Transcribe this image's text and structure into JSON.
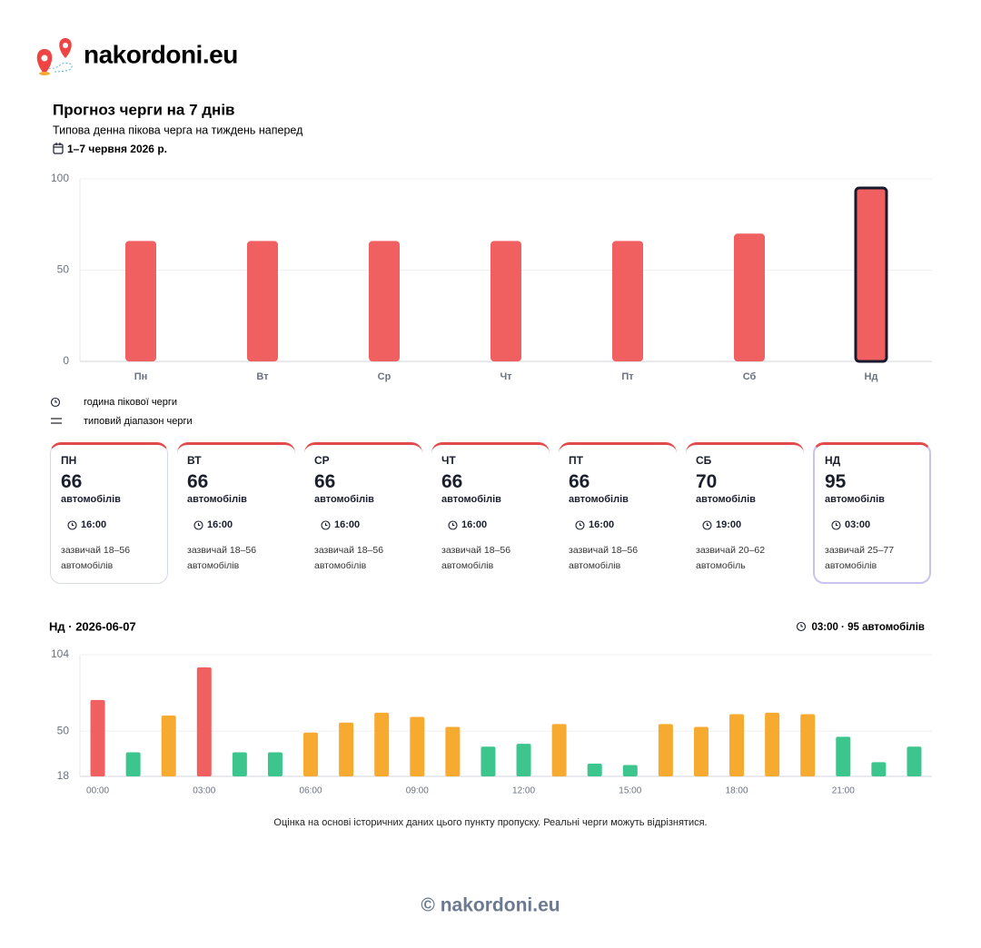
{
  "header": {
    "brand": "nakordoni.eu"
  },
  "section": {
    "title": "Прогноз черги на 7 днів",
    "subtitle": "Типова денна пікова черга на тиждень наперед",
    "dates": "1–7 червня 2026 р."
  },
  "chart_data": [
    {
      "type": "bar",
      "categories": [
        "Пн",
        "Вт",
        "Ср",
        "Чт",
        "Пт",
        "Сб",
        "Нд"
      ],
      "values": [
        66,
        66,
        66,
        66,
        66,
        70,
        95
      ],
      "color": "#f06060",
      "ylim": [
        0,
        100
      ],
      "yticks": [
        0,
        50,
        100
      ],
      "grid": true
    },
    {
      "type": "bar",
      "title": "Нд · 2026-06-07",
      "peak": "03:00 · 95 автомобілів",
      "categories": [
        "00:00",
        null,
        null,
        "03:00",
        null,
        null,
        "06:00",
        null,
        null,
        "09:00",
        null,
        null,
        "12:00",
        null,
        null,
        "15:00",
        null,
        null,
        "18:00",
        null,
        null,
        "21:00",
        null,
        null
      ],
      "values": [
        72,
        35,
        61,
        95,
        35,
        35,
        49,
        56,
        63,
        60,
        53,
        39,
        41,
        55,
        27,
        26,
        55,
        53,
        62,
        63,
        62,
        46,
        28,
        39
      ],
      "colors": [
        "#f06060",
        "#3cc68e",
        "#f6ab30",
        "#f06060",
        "#3cc68e",
        "#3cc68e",
        "#f6ab30",
        "#f6ab30",
        "#f6ab30",
        "#f6ab30",
        "#f6ab30",
        "#3cc68e",
        "#3cc68e",
        "#f6ab30",
        "#3cc68e",
        "#3cc68e",
        "#f6ab30",
        "#f6ab30",
        "#f6ab30",
        "#f6ab30",
        "#f6ab30",
        "#3cc68e",
        "#3cc68e",
        "#3cc68e"
      ],
      "ylim": [
        18,
        104
      ],
      "yticks": [
        18,
        50,
        104
      ],
      "grid": true
    }
  ],
  "legend": {
    "peak": "година пікової черги",
    "range": "типовий діапазон черги"
  },
  "cards": [
    {
      "day": "ПН",
      "value": 66,
      "unit": "автомобілів",
      "time": "16:00",
      "range": "зазвичай 18–56 автомобілів"
    },
    {
      "day": "ВТ",
      "value": 66,
      "unit": "автомобілів",
      "time": "16:00",
      "range": "зазвичай 18–56 автомобілів"
    },
    {
      "day": "СР",
      "value": 66,
      "unit": "автомобілів",
      "time": "16:00",
      "range": "зазвичай 18–56 автомобілів"
    },
    {
      "day": "ЧТ",
      "value": 66,
      "unit": "автомобілів",
      "time": "16:00",
      "range": "зазвичай 18–56 автомобілів"
    },
    {
      "day": "ПТ",
      "value": 66,
      "unit": "автомобілів",
      "time": "16:00",
      "range": "зазвичай 18–56 автомобілів"
    },
    {
      "day": "СБ",
      "value": 70,
      "unit": "автомобілів",
      "time": "19:00",
      "range": "зазвичай 20–62 автомобіль"
    },
    {
      "day": "НД",
      "value": 95,
      "unit": "автомобілів",
      "time": "03:00",
      "range": "зазвичай 25–77 автомобілів"
    }
  ],
  "note": "Оцінка на основі історичних даних цього пункту пропуску. Реальні черги можуть відрізнятися.",
  "footer": "© nakordoni.eu"
}
